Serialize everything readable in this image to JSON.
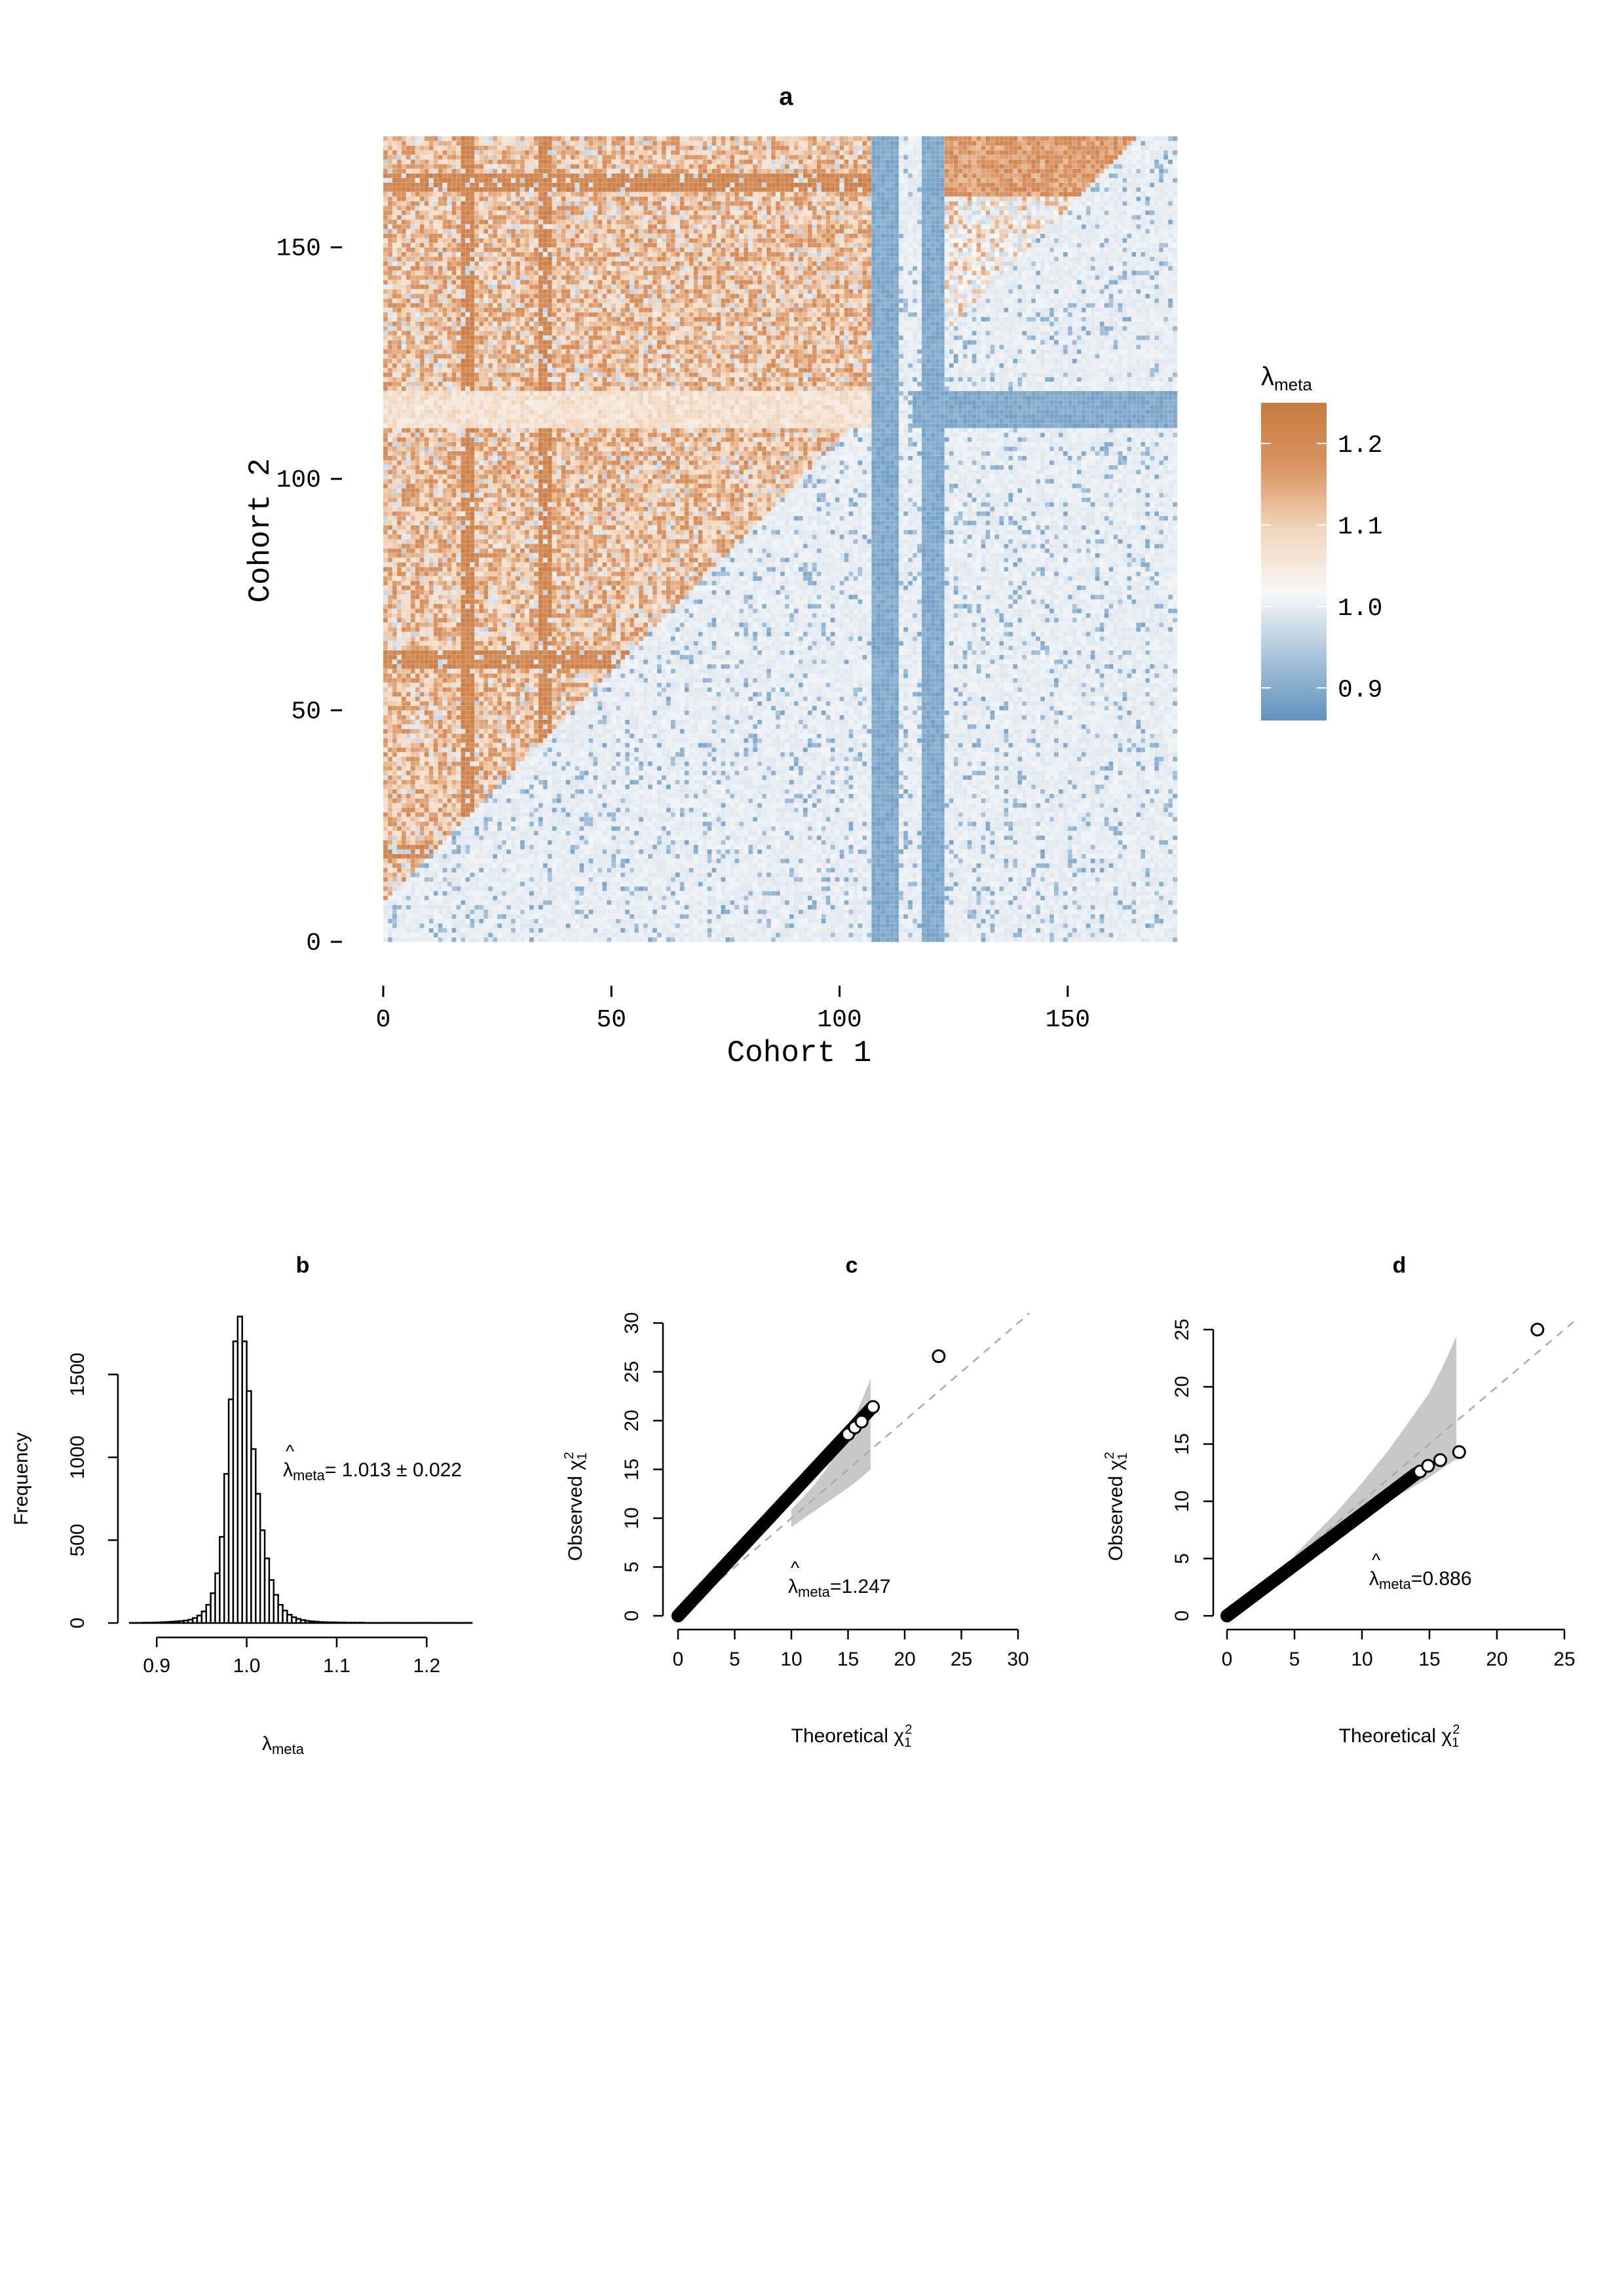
{
  "chart_data": [
    {
      "panel": "a",
      "type": "heatmap",
      "title": "a",
      "xlabel": "Cohort 1",
      "ylabel": "Cohort 2",
      "n_cohorts": 174,
      "xlim": [
        0,
        174
      ],
      "ylim": [
        0,
        174
      ],
      "xticks": [
        0,
        50,
        100,
        150
      ],
      "yticks": [
        0,
        50,
        100,
        150
      ],
      "xtick_labels": [
        "0",
        "50",
        "100",
        "150"
      ],
      "ytick_labels": [
        "0",
        "50",
        "100",
        "150"
      ],
      "colorbar": {
        "title_main": "λ",
        "title_sub": "meta",
        "range": [
          0.86,
          1.25
        ],
        "ticks": [
          1.2,
          1.1,
          1.0,
          0.9
        ],
        "tick_labels": [
          "1.2",
          "1.1",
          "1.0",
          "0.9"
        ],
        "colors": [
          "#5f92bd",
          "#a9c4dc",
          "#f8f8f8",
          "#f2d6bd",
          "#d99462",
          "#c87a40"
        ]
      },
      "structure": {
        "upper_triangle": "mostly > 1 (orange)",
        "lower_triangle": "mostly ≤ 1 (grey / blue)",
        "blue_columns": [
          107,
          108,
          109,
          110,
          111,
          112,
          118,
          119,
          120,
          121,
          122
        ],
        "blue_rows": [
          111,
          112,
          113,
          114,
          115,
          116,
          117,
          118
        ],
        "orange_columns": [
          17,
          18,
          19,
          34,
          35,
          36
        ],
        "orange_rows": [
          18,
          19,
          20,
          59,
          60,
          61,
          62,
          162,
          163,
          164,
          165
        ]
      }
    },
    {
      "panel": "b",
      "type": "bar",
      "title": "b",
      "xlabel": "λ",
      "xlabel_sub": "meta",
      "ylabel": "Frequency",
      "xlim": [
        0.87,
        1.25
      ],
      "ylim": [
        0,
        1850
      ],
      "xticks": [
        0.9,
        1.0,
        1.1,
        1.2
      ],
      "xtick_labels": [
        "0.9",
        "1.0",
        "1.1",
        "1.2"
      ],
      "yticks": [
        0,
        500,
        1000,
        1500
      ],
      "ytick_labels": [
        "0",
        "500",
        "1000",
        "1500"
      ],
      "bin_width": 0.005,
      "bin_start": 0.87,
      "values": [
        1,
        1,
        1,
        2,
        2,
        3,
        4,
        5,
        6,
        8,
        10,
        12,
        15,
        20,
        30,
        45,
        70,
        110,
        180,
        300,
        520,
        900,
        1350,
        1700,
        1850,
        1700,
        1400,
        1050,
        780,
        560,
        390,
        260,
        170,
        110,
        75,
        50,
        35,
        25,
        18,
        13,
        10,
        8,
        6,
        5,
        4,
        4,
        3,
        3,
        2,
        2,
        2,
        2,
        1,
        1,
        1,
        1,
        1,
        1,
        1,
        1,
        1,
        1,
        1,
        1,
        1,
        1,
        1,
        1,
        1,
        1,
        1,
        1,
        1,
        1,
        1,
        1
      ],
      "annotation": {
        "hat": "^",
        "lambda": "λ",
        "sub": "meta",
        "text": "= 1.013 ± 0.022"
      }
    },
    {
      "panel": "c",
      "type": "scatter",
      "title": "c",
      "xlabel": "Theoretical χ",
      "ylabel": "Observed χ",
      "sup": "2",
      "sub": "1",
      "xlim": [
        0,
        30
      ],
      "ylim": [
        0,
        30
      ],
      "xticks": [
        0,
        5,
        10,
        15,
        20,
        25,
        30
      ],
      "xtick_labels": [
        "0",
        "5",
        "10",
        "15",
        "20",
        "25",
        "30"
      ],
      "yticks": [
        0,
        5,
        10,
        15,
        20,
        25,
        30
      ],
      "ytick_labels": [
        "0",
        "5",
        "10",
        "15",
        "20",
        "25",
        "30"
      ],
      "slope": 1.247,
      "x_max_bulk": 17.0,
      "outliers": [
        [
          15.0,
          18.6
        ],
        [
          15.6,
          19.3
        ],
        [
          16.2,
          19.9
        ],
        [
          17.2,
          21.4
        ],
        [
          23.0,
          26.6
        ]
      ],
      "reference_line": [
        [
          0,
          0
        ],
        [
          31,
          31
        ]
      ],
      "band_x": [
        10,
        11,
        12,
        13,
        14,
        15,
        16,
        17
      ],
      "band_upper": [
        10.9,
        12.1,
        13.4,
        14.9,
        16.7,
        18.9,
        21.5,
        24.3
      ],
      "band_lower": [
        9.1,
        9.9,
        10.7,
        11.5,
        12.3,
        13.1,
        14.0,
        15.0
      ],
      "annotation": {
        "hat": "^",
        "lambda": "λ",
        "sub": "meta",
        "text": "=1.247"
      }
    },
    {
      "panel": "d",
      "type": "scatter",
      "title": "d",
      "xlabel": "Theoretical χ",
      "ylabel": "Observed χ",
      "sup": "2",
      "sub": "1",
      "xlim": [
        0,
        25
      ],
      "ylim": [
        0,
        25
      ],
      "xticks": [
        0,
        5,
        10,
        15,
        20,
        25
      ],
      "xtick_labels": [
        "0",
        "5",
        "10",
        "15",
        "20",
        "25"
      ],
      "yticks": [
        0,
        5,
        10,
        15,
        20,
        25
      ],
      "ytick_labels": [
        "0",
        "5",
        "10",
        "15",
        "20",
        "25"
      ],
      "slope": 0.886,
      "x_max_bulk": 14.0,
      "outliers": [
        [
          14.3,
          12.6
        ],
        [
          14.9,
          13.1
        ],
        [
          15.8,
          13.6
        ],
        [
          17.2,
          14.3
        ],
        [
          23.0,
          25.0
        ]
      ],
      "reference_line": [
        [
          0,
          0
        ],
        [
          26,
          26
        ]
      ],
      "band_x": [
        5,
        6,
        8,
        10,
        12,
        14,
        15,
        16,
        17
      ],
      "band_upper": [
        5.3,
        6.5,
        8.9,
        11.6,
        14.5,
        17.8,
        19.5,
        21.8,
        24.4
      ],
      "band_lower": [
        4.7,
        5.5,
        7.1,
        8.6,
        10.0,
        11.4,
        12.1,
        12.9,
        13.7
      ],
      "annotation": {
        "hat": "^",
        "lambda": "λ",
        "sub": "meta",
        "text": "=0.886"
      }
    }
  ]
}
